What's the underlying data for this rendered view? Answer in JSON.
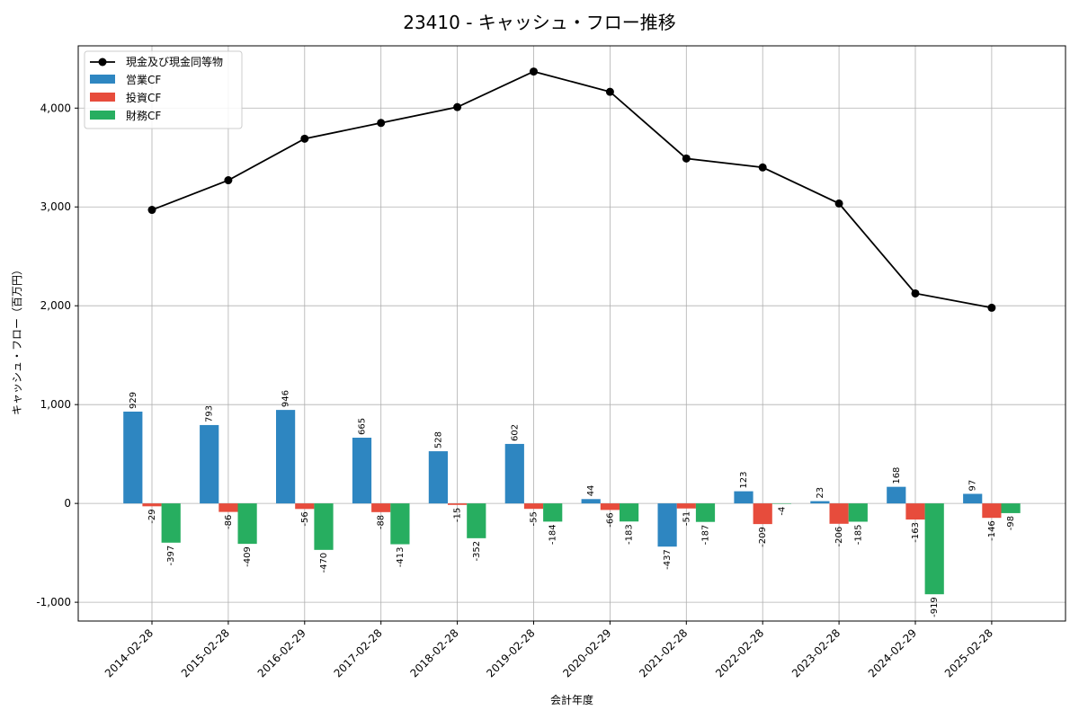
{
  "chart_data": {
    "type": "bar",
    "title": "23410 - キャッシュ・フロー推移",
    "xlabel": "会計年度",
    "ylabel": "キャッシュ・フロー（百万円）",
    "ylim": [
      -1190,
      4630
    ],
    "yticks": [
      -1000,
      0,
      1000,
      2000,
      3000,
      4000
    ],
    "ytick_labels": [
      "-1,000",
      "0",
      "1,000",
      "2,000",
      "3,000",
      "4,000"
    ],
    "grid": true,
    "legend_position": "top-left",
    "categories": [
      "2014-02-28",
      "2015-02-28",
      "2016-02-29",
      "2017-02-28",
      "2018-02-28",
      "2019-02-28",
      "2020-02-29",
      "2021-02-28",
      "2022-02-28",
      "2023-02-28",
      "2024-02-29",
      "2025-02-28"
    ],
    "series": [
      {
        "name": "現金及び現金同等物",
        "kind": "line",
        "color": "#000000",
        "values": [
          2970,
          3270,
          3690,
          3850,
          4010,
          4370,
          4165,
          3490,
          3400,
          3035,
          2125,
          1980
        ]
      },
      {
        "name": "営業CF",
        "kind": "bar",
        "color": "#2e86c1",
        "values": [
          929,
          793,
          946,
          665,
          528,
          602,
          44,
          -437,
          123,
          23,
          168,
          97
        ],
        "labels": [
          "929",
          "793",
          "946",
          "665",
          "528",
          "602",
          "44",
          "-437",
          "123",
          "23",
          "168",
          "97"
        ]
      },
      {
        "name": "投資CF",
        "kind": "bar",
        "color": "#e74c3c",
        "values": [
          -29,
          -86,
          -56,
          -88,
          -15,
          -55,
          -66,
          -51,
          -209,
          -206,
          -163,
          -146
        ],
        "labels": [
          "-29",
          "-86",
          "-56",
          "-88",
          "-15",
          "-55",
          "-66",
          "-51",
          "-209",
          "-206",
          "-163",
          "-146"
        ]
      },
      {
        "name": "財務CF",
        "kind": "bar",
        "color": "#27ae60",
        "values": [
          -397,
          -409,
          -470,
          -413,
          -352,
          -184,
          -183,
          -187,
          -4,
          -185,
          -919,
          -98
        ],
        "labels": [
          "-397",
          "-409",
          "-470",
          "-413",
          "-352",
          "-184",
          "-183",
          "-187",
          "-4",
          "-185",
          "-919",
          "-98"
        ]
      }
    ]
  }
}
